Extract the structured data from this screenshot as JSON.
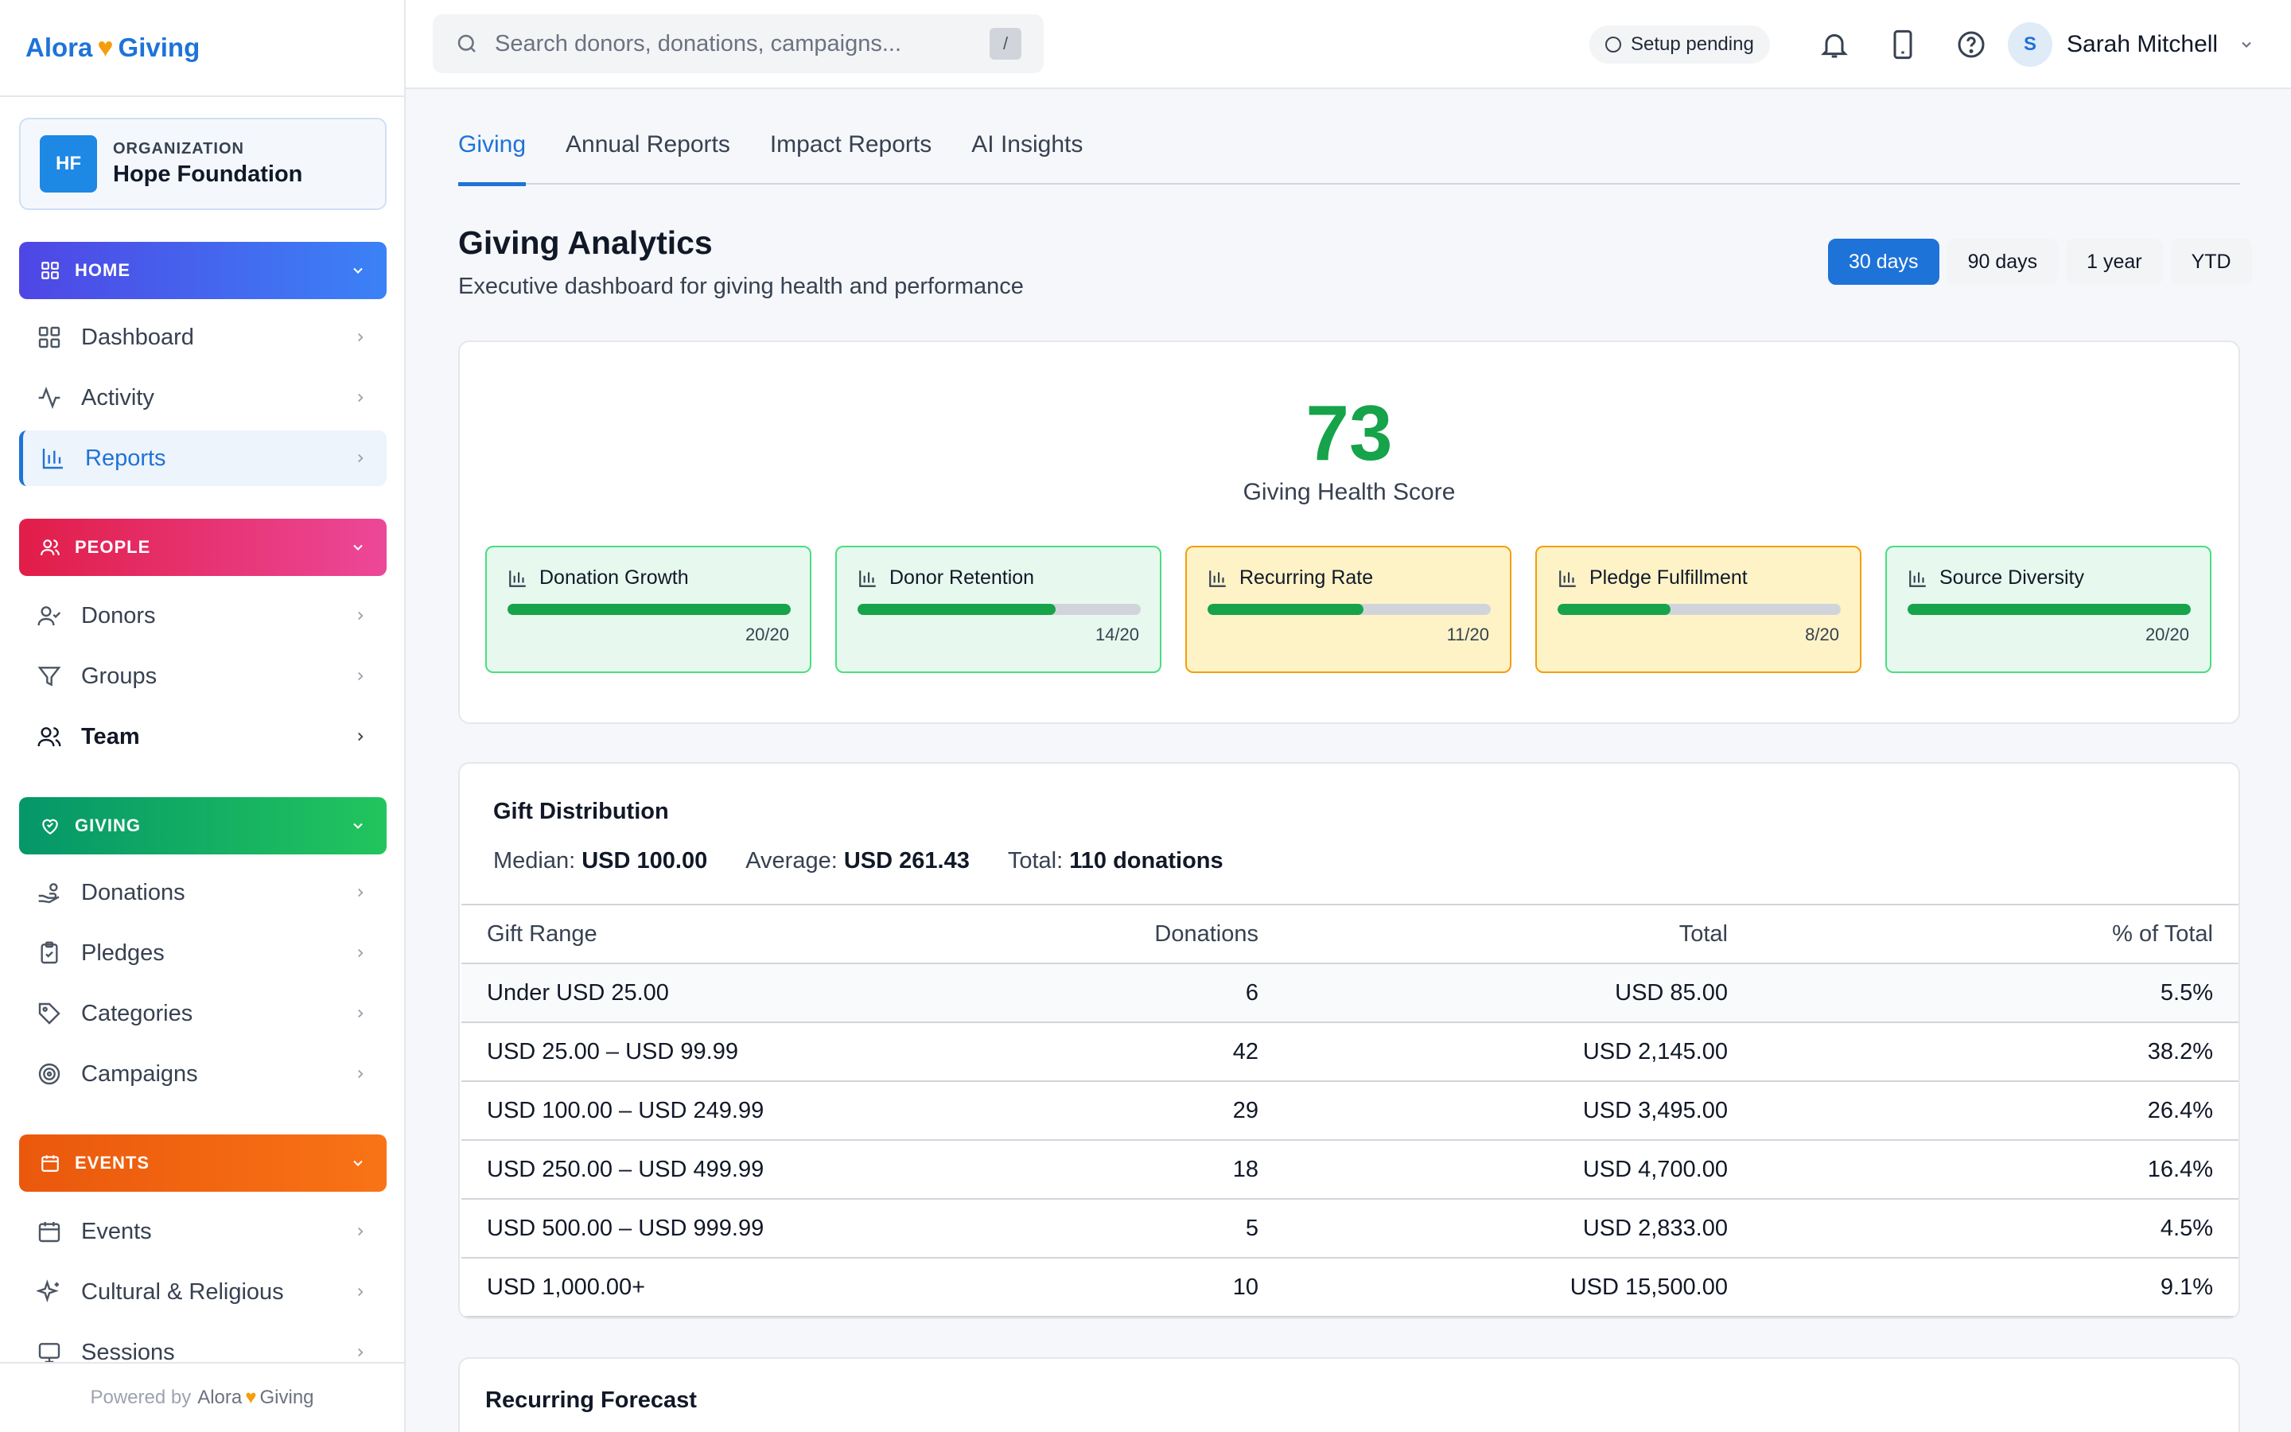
{
  "brand": {
    "name_left": "Alora",
    "name_right": "Giving",
    "heart": "♥"
  },
  "org": {
    "initials": "HF",
    "kicker": "ORGANIZATION",
    "name": "Hope Foundation"
  },
  "sidebar": {
    "sections": {
      "home": {
        "label": "HOME",
        "color": "#4f46e5"
      },
      "people": {
        "label": "PEOPLE",
        "color": "#e11d48"
      },
      "giving": {
        "label": "GIVING",
        "color": "#059669"
      },
      "events": {
        "label": "EVENTS",
        "color": "#ea580c"
      }
    },
    "items": {
      "dashboard": "Dashboard",
      "activity": "Activity",
      "reports": "Reports",
      "donors": "Donors",
      "groups": "Groups",
      "team": "Team",
      "donations": "Donations",
      "pledges": "Pledges",
      "categories": "Categories",
      "campaigns": "Campaigns",
      "events": "Events",
      "cultural": "Cultural & Religious",
      "sessions": "Sessions"
    },
    "footer": {
      "prefix": "Powered by",
      "brand_left": "Alora",
      "brand_right": "Giving"
    }
  },
  "topbar": {
    "search_placeholder": "Search donors, donations, campaigns...",
    "search_shortcut": "/",
    "setup_status": "Setup pending",
    "user": {
      "initial": "S",
      "name": "Sarah Mitchell"
    },
    "icons": [
      "bell-icon",
      "phone-icon",
      "help-icon"
    ]
  },
  "tabs": [
    "Giving",
    "Annual Reports",
    "Impact Reports",
    "AI Insights"
  ],
  "header": {
    "title": "Giving Analytics",
    "subtitle": "Executive dashboard for giving health and performance"
  },
  "ranges": [
    "30 days",
    "90 days",
    "1 year",
    "YTD"
  ],
  "selected_range": "30 days",
  "health": {
    "score": "73",
    "label": "Giving Health Score",
    "metrics": [
      {
        "name": "Donation Growth",
        "score": "20/20",
        "fill": 1.0,
        "status": "good"
      },
      {
        "name": "Donor Retention",
        "score": "14/20",
        "fill": 0.7,
        "status": "good"
      },
      {
        "name": "Recurring Rate",
        "score": "11/20",
        "fill": 0.55,
        "status": "warn"
      },
      {
        "name": "Pledge Fulfillment",
        "score": "8/20",
        "fill": 0.4,
        "status": "warn"
      },
      {
        "name": "Source Diversity",
        "score": "20/20",
        "fill": 1.0,
        "status": "good"
      }
    ],
    "colors": {
      "good": "#16a34a",
      "warn_border": "#f59e0b"
    }
  },
  "gift_distribution": {
    "title": "Gift Distribution",
    "median_label": "Median:",
    "median_value": "USD 100.00",
    "average_label": "Average:",
    "average_value": "USD 261.43",
    "total_label": "Total:",
    "total_value": "110 donations",
    "columns": [
      "Gift Range",
      "Donations",
      "Total",
      "% of Total"
    ],
    "rows": [
      [
        "Under USD 25.00",
        "6",
        "USD 85.00",
        "5.5%"
      ],
      [
        "USD 25.00 – USD 99.99",
        "42",
        "USD 2,145.00",
        "38.2%"
      ],
      [
        "USD 100.00 – USD 249.99",
        "29",
        "USD 3,495.00",
        "26.4%"
      ],
      [
        "USD 250.00 – USD 499.99",
        "18",
        "USD 4,700.00",
        "16.4%"
      ],
      [
        "USD 500.00 – USD 999.99",
        "5",
        "USD 2,833.00",
        "4.5%"
      ],
      [
        "USD 1,000.00+",
        "10",
        "USD 15,500.00",
        "9.1%"
      ]
    ]
  },
  "recurring_forecast": {
    "title": "Recurring Forecast"
  },
  "accent": "#1e73d8"
}
